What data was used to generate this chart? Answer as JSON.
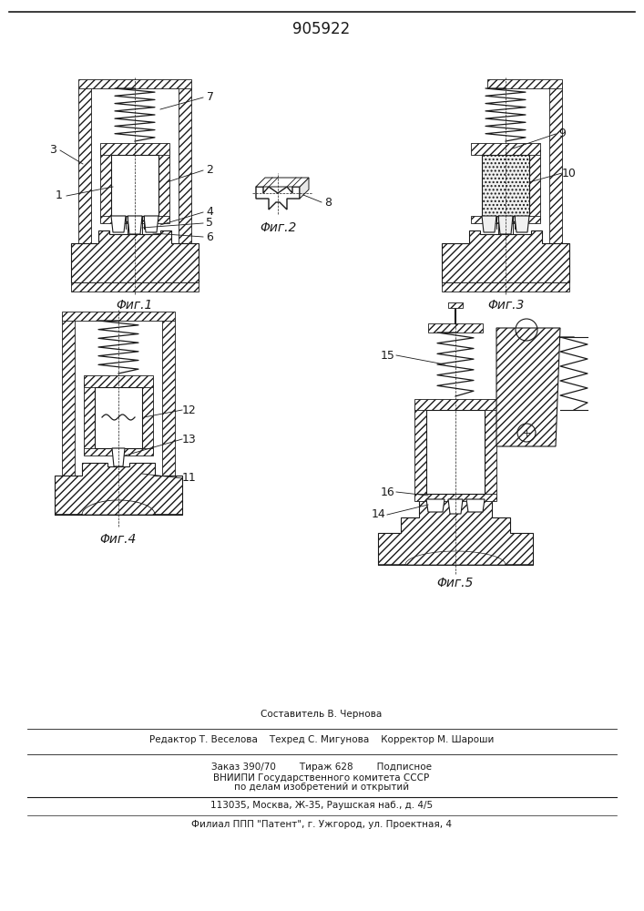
{
  "patent_number": "905922",
  "background_color": "#ffffff",
  "line_color": "#1a1a1a",
  "fig_labels": [
    "Φиг.1",
    "Φиг.2",
    "Φиг.3",
    "Φиг.4",
    "Φиг.5"
  ],
  "footer_lines": [
    "Составитель В. Чернова",
    "Редактор Т. Веселова    Техред С. Мигунова    Корректор М. Шароши",
    "Заказ 390/70        Тираж 628        Подписное",
    "ВНИИПИ Государственного комитета СССР",
    "по делам изобретений и открытий",
    "113035, Москва, Ж-35, Раушская наб., д. 4/5",
    "Филиал ППП \"Патент\", г. Ужгород, ул. Проектная, 4"
  ],
  "figsize": [
    7.07,
    10.0
  ],
  "dpi": 100
}
